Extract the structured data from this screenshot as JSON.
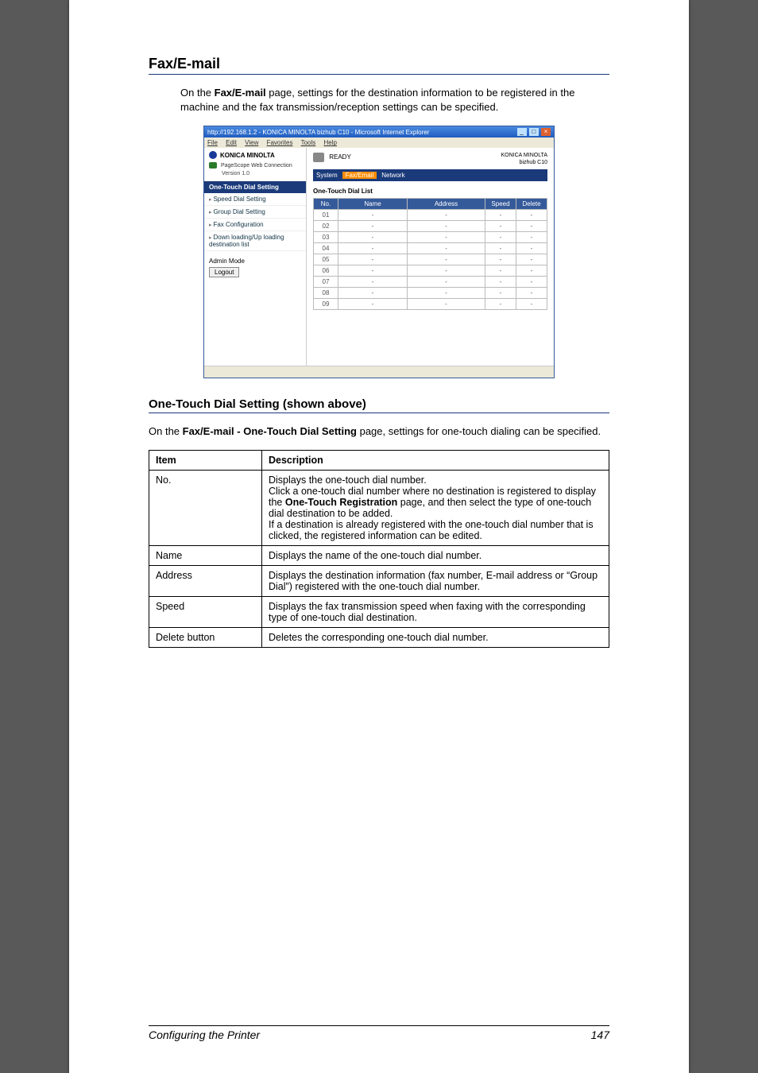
{
  "colors": {
    "page_bg": "#595959",
    "accent_blue": "#1a3a7a",
    "tab_active": "#ff8c00"
  },
  "section": {
    "title": "Fax/E-mail",
    "intro_before": "On the ",
    "intro_bold": "Fax/E-mail",
    "intro_after": " page, settings for the destination information to be registered in the machine and the fax transmission/reception settings can be specified."
  },
  "mini": {
    "titlebar": "http://192.168.1.2 - KONICA MINOLTA bizhub C10 - Microsoft Internet Explorer",
    "menu": [
      "File",
      "Edit",
      "View",
      "Favorites",
      "Tools",
      "Help"
    ],
    "brand": "KONICA MINOLTA",
    "psw_label": "PageScope Web Connection",
    "version": "Version 1.0",
    "nav_header": "One-Touch Dial Setting",
    "nav_items": [
      "Speed Dial Setting",
      "Group Dial Setting",
      "Fax Configuration",
      "Down loading/Up loading destination list"
    ],
    "admin": "Admin Mode",
    "logout": "Logout",
    "ready": "READY",
    "model_line1": "KONICA MINOLTA",
    "model_line2": "bizhub C10",
    "tabs": [
      "System",
      "Fax/Email",
      "Network"
    ],
    "active_tab_index": 1,
    "list_title": "One-Touch Dial List",
    "table_headers": [
      "No.",
      "Name",
      "Address",
      "Speed",
      "Delete"
    ],
    "table_nos": [
      "01",
      "02",
      "03",
      "04",
      "05",
      "06",
      "07",
      "08",
      "09"
    ]
  },
  "subsection": {
    "title": "One-Touch Dial Setting (shown above)",
    "intro_before": "On the ",
    "intro_bold": "Fax/E-mail - One-Touch Dial Setting",
    "intro_after": " page, settings for one-touch dialing can be specified."
  },
  "doc_table": {
    "headers": [
      "Item",
      "Description"
    ],
    "rows": [
      {
        "item": "No.",
        "desc_parts": [
          "Displays the one-touch dial number.",
          "Click a one-touch dial number where no destination is registered to display the ",
          {
            "bold": "One-Touch Registration"
          },
          " page, and then select the type of one-touch dial destination to be added.",
          "If a destination is already registered with the one-touch dial number that is clicked, the registered information can be edited."
        ]
      },
      {
        "item": "Name",
        "desc": "Displays the name of the one-touch dial number."
      },
      {
        "item": "Address",
        "desc": "Displays the destination information (fax number, E-mail address or “Group Dial”) registered with the one-touch dial number."
      },
      {
        "item": "Speed",
        "desc": "Displays the fax transmission speed when faxing with the corresponding type of one-touch dial destination."
      },
      {
        "item": "Delete button",
        "desc": "Deletes the corresponding one-touch dial number."
      }
    ]
  },
  "footer": {
    "left": "Configuring the Printer",
    "page": "147"
  }
}
